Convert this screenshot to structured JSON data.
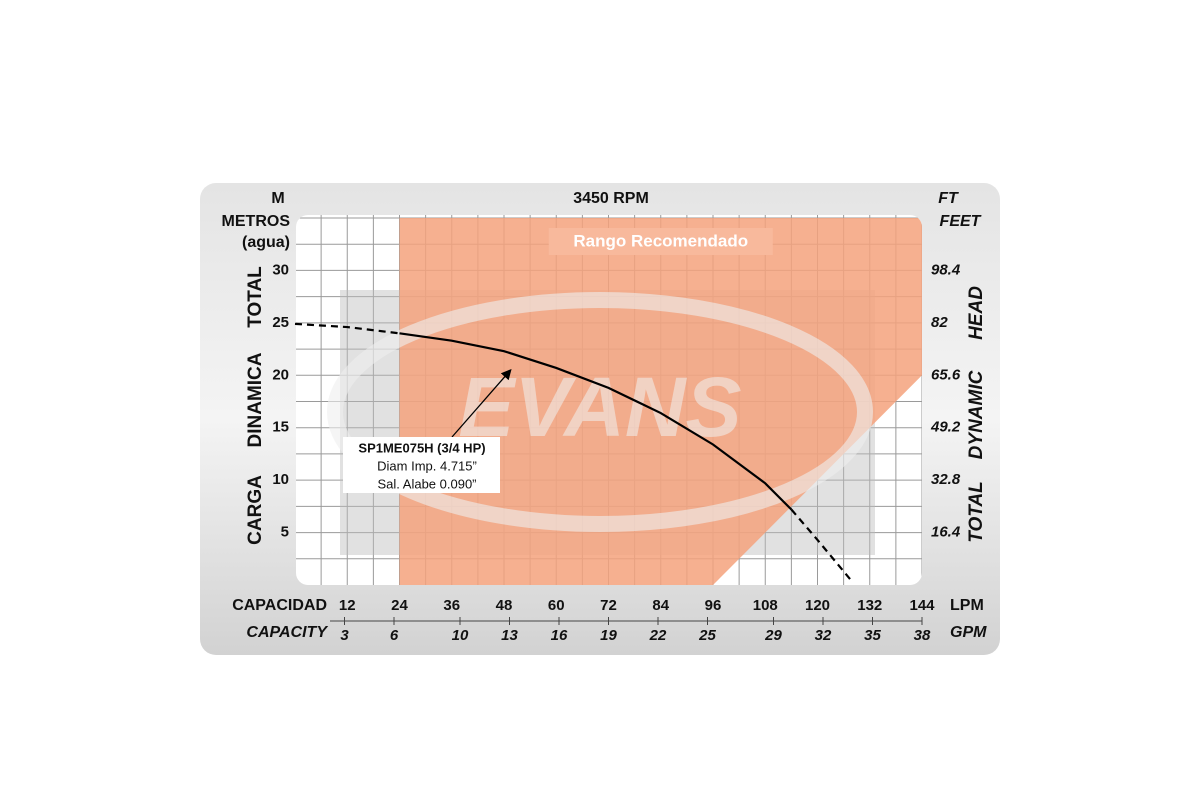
{
  "chart_data": {
    "type": "line",
    "title": "3450 RPM",
    "y_unit": "M",
    "y_label_top": "METROS",
    "y_label_sub": "(agua)",
    "y_label_words": [
      "TOTAL",
      "DINAMICA",
      "CARGA"
    ],
    "y2_unit": "FT",
    "y2_label_top": "FEET",
    "y2_label_words": [
      "HEAD",
      "DYNAMIC",
      "TOTAL"
    ],
    "x_label": "CAPACIDAD",
    "x_unit": "LPM",
    "x2_label": "CAPACITY",
    "x2_unit": "GPM",
    "xlim": [
      0,
      144
    ],
    "xticks": [
      12,
      24,
      36,
      48,
      60,
      72,
      84,
      96,
      108,
      120,
      132,
      144
    ],
    "x2lim": [
      0,
      38
    ],
    "x2ticks": [
      3,
      6,
      10,
      13,
      16,
      19,
      22,
      25,
      29,
      32,
      35,
      38
    ],
    "ylim": [
      0,
      35
    ],
    "yticks": [
      5,
      10,
      15,
      20,
      25,
      30
    ],
    "y2lim": [
      0,
      114.8
    ],
    "y2ticks": [
      16.4,
      32.8,
      49.2,
      65.6,
      82,
      98.4
    ],
    "x_grid_step": 6,
    "y_grid_step": 2.5,
    "grid": true,
    "recommended_range": {
      "label": "Rango Recomendado",
      "color": "#f5a27c",
      "x": [
        24,
        144,
        144,
        96,
        24
      ],
      "y": [
        35,
        35,
        20,
        0,
        0
      ]
    },
    "watermark": "EVANS",
    "series": [
      {
        "color": "#000000",
        "dashed": true,
        "x": [
          0,
          12,
          24
        ],
        "values": [
          24.9,
          24.6,
          24.0
        ]
      },
      {
        "color": "#000000",
        "dashed": false,
        "x": [
          24,
          36,
          48,
          60,
          72,
          84,
          96,
          108,
          114
        ],
        "values": [
          24.0,
          23.3,
          22.3,
          20.7,
          18.8,
          16.4,
          13.4,
          9.7,
          7.2
        ]
      },
      {
        "color": "#000000",
        "dashed": true,
        "x": [
          114,
          120,
          128
        ],
        "values": [
          7.2,
          4.3,
          0.3
        ]
      }
    ],
    "annotation": {
      "lines": [
        "SP1ME075H (3/4 HP)",
        "Diam Imp. 4.715”",
        "Sal. Alabe 0.090”"
      ],
      "x": 50,
      "y": 20.7
    }
  }
}
